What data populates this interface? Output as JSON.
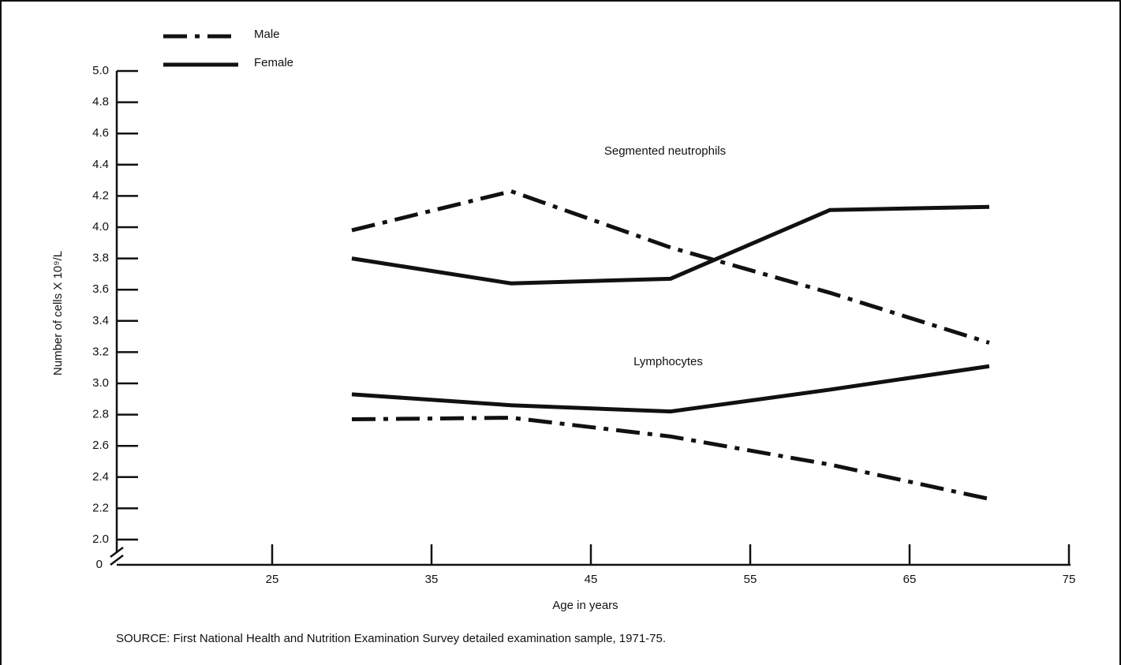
{
  "chart_data": {
    "type": "line",
    "xlabel": "Age in years",
    "ylabel": "Number of cells X 10⁹/L",
    "source": "SOURCE:  First National Health and Nutrition Examination Survey detailed examination sample, 1971-75.",
    "legend": [
      {
        "name": "Male",
        "style": "dashdot"
      },
      {
        "name": "Female",
        "style": "solid"
      }
    ],
    "annotations": [
      "Segmented neutrophils",
      "Lymphocytes"
    ],
    "x": [
      30,
      40,
      50,
      60,
      70
    ],
    "series": [
      {
        "key": 0,
        "annotation": 0,
        "color": "#111111",
        "values": [
          3.98,
          4.23,
          3.87,
          3.58,
          3.26
        ]
      },
      {
        "key": 1,
        "annotation": 0,
        "color": "#111111",
        "values": [
          3.8,
          3.64,
          3.67,
          4.11,
          4.13
        ]
      },
      {
        "key": 1,
        "annotation": 1,
        "color": "#111111",
        "values": [
          2.93,
          2.86,
          2.82,
          2.96,
          3.11
        ]
      },
      {
        "key": 0,
        "annotation": 1,
        "color": "#111111",
        "values": [
          2.77,
          2.78,
          2.66,
          2.48,
          2.26
        ]
      }
    ],
    "xlim": [
      15,
      75
    ],
    "xticks": [
      25,
      35,
      45,
      55,
      65,
      75
    ],
    "ylim": [
      2.0,
      5.0
    ],
    "yticks": [
      {
        "value": 2.0,
        "label": "2.0"
      },
      2.2,
      2.4,
      2.6,
      2.8,
      {
        "value": 3.0,
        "label": "3.0"
      },
      3.2,
      3.4,
      3.6,
      3.8,
      {
        "value": 4.0,
        "label": "4.0"
      },
      4.2,
      4.4,
      4.6,
      4.8,
      {
        "value": 5.0,
        "label": "5.0"
      }
    ],
    "y_axis_break": true,
    "y_origin": 0
  }
}
